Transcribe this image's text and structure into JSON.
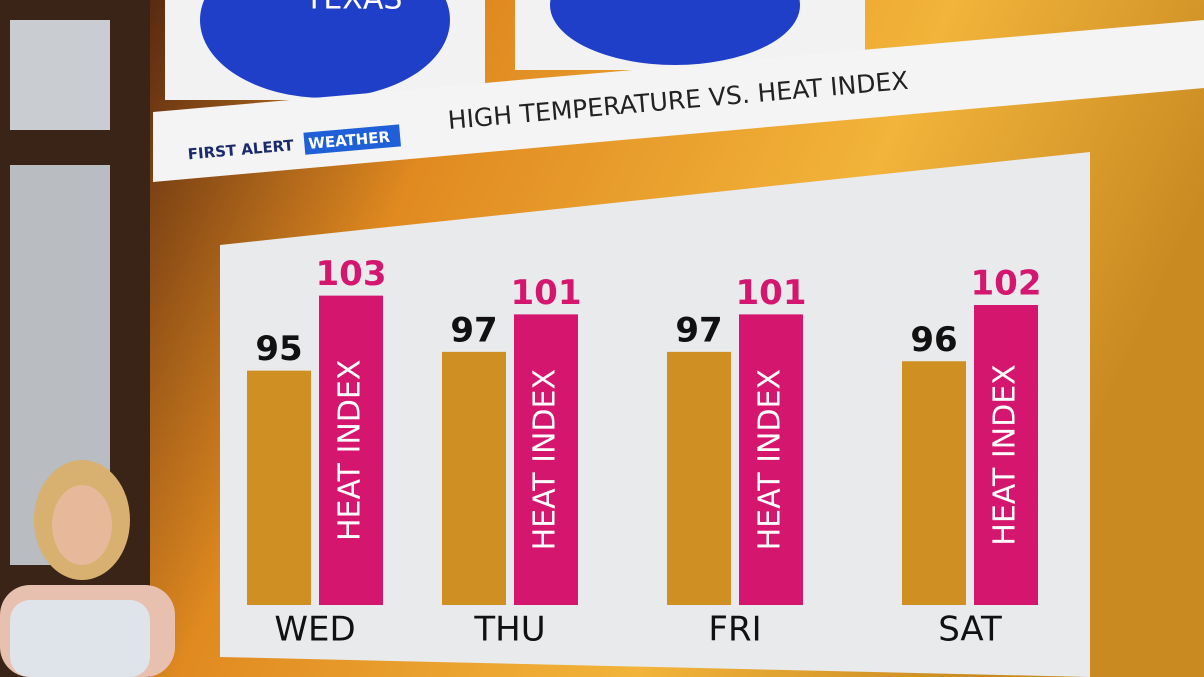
{
  "header": {
    "station": "TEXAS",
    "brand_first": "FIRST ALERT",
    "brand_weather": "WEATHER"
  },
  "chart_data": {
    "type": "bar",
    "title": "HIGH TEMPERATURE VS. HEAT INDEX",
    "categories": [
      "WED",
      "THU",
      "FRI",
      "SAT"
    ],
    "series": [
      {
        "color": "#cf8f22",
        "values": [
          95,
          97,
          97,
          96
        ]
      },
      {
        "name": "HEAT INDEX",
        "color": "#d4166e",
        "values": [
          103,
          101,
          101,
          102
        ]
      }
    ],
    "ylim": [
      70,
      110
    ]
  }
}
